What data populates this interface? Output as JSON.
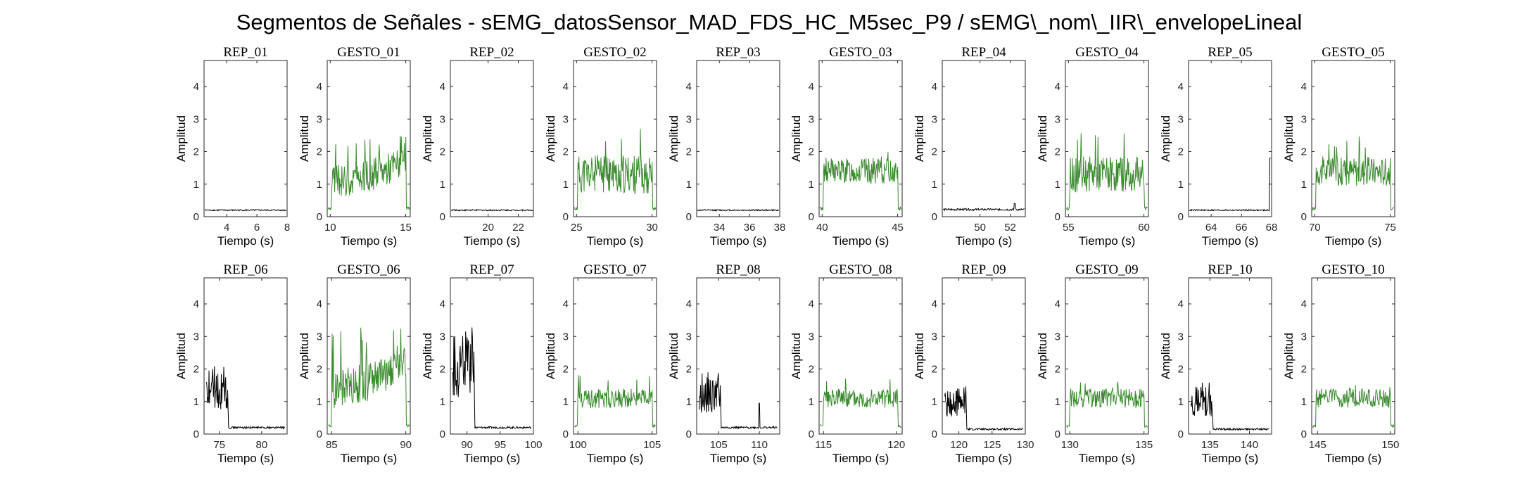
{
  "title": "Segmentos de Señales - sEMG_datosSensor_MAD_FDS_HC_M5sec_P9 / sEMG\\_nom\\_IIR\\_envelopeLineal",
  "colors": {
    "rep": "#000000",
    "gesto": "#3a8a2e"
  },
  "chart_data": [
    {
      "type": "line",
      "title": "REP_01",
      "xlabel": "Tiempo (s)",
      "ylabel": "Amplitud",
      "xlim": [
        2.5,
        8
      ],
      "ylim": [
        0,
        4.8
      ],
      "xticks": [
        4,
        6,
        8
      ],
      "yticks": [
        0,
        1,
        2,
        3,
        4
      ],
      "signal": {
        "kind": "rep",
        "pattern": "flat",
        "base": 0.2,
        "noise": 0.02
      }
    },
    {
      "type": "line",
      "title": "GESTO_01",
      "xlabel": "Tiempo (s)",
      "ylabel": "Amplitud",
      "xlim": [
        9.8,
        15.3
      ],
      "ylim": [
        0,
        4.8
      ],
      "xticks": [
        10,
        15
      ],
      "yticks": [
        0,
        1,
        2,
        3,
        4
      ],
      "signal": {
        "kind": "gesto",
        "pattern": "rising",
        "base": 1.1,
        "noise": 0.5,
        "peak": 2.5
      }
    },
    {
      "type": "line",
      "title": "REP_02",
      "xlabel": "Tiempo (s)",
      "ylabel": "Amplitud",
      "xlim": [
        17.5,
        23
      ],
      "ylim": [
        0,
        4.8
      ],
      "xticks": [
        20,
        22
      ],
      "yticks": [
        0,
        1,
        2,
        3,
        4
      ],
      "signal": {
        "kind": "rep",
        "pattern": "flat",
        "base": 0.2,
        "noise": 0.02
      }
    },
    {
      "type": "line",
      "title": "GESTO_02",
      "xlabel": "Tiempo (s)",
      "ylabel": "Amplitud",
      "xlim": [
        24.8,
        30.3
      ],
      "ylim": [
        0,
        4.8
      ],
      "xticks": [
        25,
        30
      ],
      "yticks": [
        0,
        1,
        2,
        3,
        4
      ],
      "signal": {
        "kind": "gesto",
        "pattern": "noisy",
        "base": 1.3,
        "noise": 0.6,
        "peak": 2.7
      }
    },
    {
      "type": "line",
      "title": "REP_03",
      "xlabel": "Tiempo (s)",
      "ylabel": "Amplitud",
      "xlim": [
        32.5,
        38
      ],
      "ylim": [
        0,
        4.8
      ],
      "xticks": [
        34,
        36,
        38
      ],
      "yticks": [
        0,
        1,
        2,
        3,
        4
      ],
      "signal": {
        "kind": "rep",
        "pattern": "flat",
        "base": 0.2,
        "noise": 0.02
      }
    },
    {
      "type": "line",
      "title": "GESTO_03",
      "xlabel": "Tiempo (s)",
      "ylabel": "Amplitud",
      "xlim": [
        39.8,
        45.3
      ],
      "ylim": [
        0,
        4.8
      ],
      "xticks": [
        40,
        45
      ],
      "yticks": [
        0,
        1,
        2,
        3,
        4
      ],
      "signal": {
        "kind": "gesto",
        "pattern": "noisy",
        "base": 1.4,
        "noise": 0.4,
        "peak": 2.1
      }
    },
    {
      "type": "line",
      "title": "REP_04",
      "xlabel": "Tiempo (s)",
      "ylabel": "Amplitud",
      "xlim": [
        47.5,
        53
      ],
      "ylim": [
        0,
        4.8
      ],
      "xticks": [
        50,
        52
      ],
      "yticks": [
        0,
        1,
        2,
        3,
        4
      ],
      "signal": {
        "kind": "rep",
        "pattern": "flat-spike",
        "base": 0.22,
        "noise": 0.03,
        "peak": 0.4
      }
    },
    {
      "type": "line",
      "title": "GESTO_04",
      "xlabel": "Tiempo (s)",
      "ylabel": "Amplitud",
      "xlim": [
        54.8,
        60.3
      ],
      "ylim": [
        0,
        4.8
      ],
      "xticks": [
        55,
        60
      ],
      "yticks": [
        0,
        1,
        2,
        3,
        4
      ],
      "signal": {
        "kind": "gesto",
        "pattern": "noisy",
        "base": 1.3,
        "noise": 0.55,
        "peak": 2.7
      }
    },
    {
      "type": "line",
      "title": "REP_05",
      "xlabel": "Tiempo (s)",
      "ylabel": "Amplitud",
      "xlim": [
        62.5,
        68
      ],
      "ylim": [
        0,
        4.8
      ],
      "xticks": [
        64,
        66,
        68
      ],
      "yticks": [
        0,
        1,
        2,
        3,
        4
      ],
      "signal": {
        "kind": "rep",
        "pattern": "flat-end",
        "base": 0.2,
        "noise": 0.02,
        "peak": 1.8
      }
    },
    {
      "type": "line",
      "title": "GESTO_05",
      "xlabel": "Tiempo (s)",
      "ylabel": "Amplitud",
      "xlim": [
        69.8,
        75.3
      ],
      "ylim": [
        0,
        4.8
      ],
      "xticks": [
        70,
        75
      ],
      "yticks": [
        0,
        1,
        2,
        3,
        4
      ],
      "signal": {
        "kind": "gesto",
        "pattern": "noisy",
        "base": 1.4,
        "noise": 0.45,
        "peak": 2.5
      }
    },
    {
      "type": "line",
      "title": "REP_06",
      "xlabel": "Tiempo (s)",
      "ylabel": "Amplitud",
      "xlim": [
        73.2,
        83
      ],
      "ylim": [
        0,
        4.8
      ],
      "xticks": [
        75,
        80
      ],
      "yticks": [
        0,
        1,
        2,
        3,
        4
      ],
      "signal": {
        "kind": "rep",
        "pattern": "burst-decay",
        "base": 0.2,
        "noise": 0.03,
        "peak": 2.1
      }
    },
    {
      "type": "line",
      "title": "GESTO_06",
      "xlabel": "Tiempo (s)",
      "ylabel": "Amplitud",
      "xlim": [
        84.7,
        90.3
      ],
      "ylim": [
        0,
        4.8
      ],
      "xticks": [
        85,
        90
      ],
      "yticks": [
        0,
        1,
        2,
        3,
        4
      ],
      "signal": {
        "kind": "gesto",
        "pattern": "rising",
        "base": 1.4,
        "noise": 0.6,
        "peak": 3.3
      }
    },
    {
      "type": "line",
      "title": "REP_07",
      "xlabel": "Tiempo (s)",
      "ylabel": "Amplitud",
      "xlim": [
        87.5,
        100
      ],
      "ylim": [
        0,
        4.8
      ],
      "xticks": [
        90,
        95,
        100
      ],
      "yticks": [
        0,
        1,
        2,
        3,
        4
      ],
      "signal": {
        "kind": "rep",
        "pattern": "burst-decay",
        "base": 0.2,
        "noise": 0.03,
        "peak": 3.3
      }
    },
    {
      "type": "line",
      "title": "GESTO_07",
      "xlabel": "Tiempo (s)",
      "ylabel": "Amplitud",
      "xlim": [
        99.7,
        105.3
      ],
      "ylim": [
        0,
        4.8
      ],
      "xticks": [
        100,
        105
      ],
      "yticks": [
        0,
        1,
        2,
        3,
        4
      ],
      "signal": {
        "kind": "gesto",
        "pattern": "noisy",
        "base": 1.1,
        "noise": 0.3,
        "peak": 1.9
      }
    },
    {
      "type": "line",
      "title": "REP_08",
      "xlabel": "Tiempo (s)",
      "ylabel": "Amplitud",
      "xlim": [
        102.3,
        112.5
      ],
      "ylim": [
        0,
        4.8
      ],
      "xticks": [
        105,
        110
      ],
      "yticks": [
        0,
        1,
        2,
        3,
        4
      ],
      "signal": {
        "kind": "rep",
        "pattern": "burst-decay-spike",
        "base": 0.2,
        "noise": 0.03,
        "peak": 1.9
      }
    },
    {
      "type": "line",
      "title": "GESTO_08",
      "xlabel": "Tiempo (s)",
      "ylabel": "Amplitud",
      "xlim": [
        114.7,
        120.4
      ],
      "ylim": [
        0,
        4.8
      ],
      "xticks": [
        115,
        120
      ],
      "yticks": [
        0,
        1,
        2,
        3,
        4
      ],
      "signal": {
        "kind": "gesto",
        "pattern": "noisy",
        "base": 1.1,
        "noise": 0.3,
        "peak": 1.8
      }
    },
    {
      "type": "line",
      "title": "REP_09",
      "xlabel": "Tiempo (s)",
      "ylabel": "Amplitud",
      "xlim": [
        117.5,
        130
      ],
      "ylim": [
        0,
        4.8
      ],
      "xticks": [
        120,
        125,
        130
      ],
      "yticks": [
        0,
        1,
        2,
        3,
        4
      ],
      "signal": {
        "kind": "rep",
        "pattern": "burst-decay",
        "base": 0.15,
        "noise": 0.03,
        "peak": 1.5
      }
    },
    {
      "type": "line",
      "title": "GESTO_09",
      "xlabel": "Tiempo (s)",
      "ylabel": "Amplitud",
      "xlim": [
        129.7,
        135.3
      ],
      "ylim": [
        0,
        4.8
      ],
      "xticks": [
        130,
        135
      ],
      "yticks": [
        0,
        1,
        2,
        3,
        4
      ],
      "signal": {
        "kind": "gesto",
        "pattern": "noisy",
        "base": 1.1,
        "noise": 0.3,
        "peak": 1.6
      }
    },
    {
      "type": "line",
      "title": "REP_10",
      "xlabel": "Tiempo (s)",
      "ylabel": "Amplitud",
      "xlim": [
        132.3,
        142.8
      ],
      "ylim": [
        0,
        4.8
      ],
      "xticks": [
        135,
        140
      ],
      "yticks": [
        0,
        1,
        2,
        3,
        4
      ],
      "signal": {
        "kind": "rep",
        "pattern": "burst-decay",
        "base": 0.15,
        "noise": 0.03,
        "peak": 1.6
      }
    },
    {
      "type": "line",
      "title": "GESTO_10",
      "xlabel": "Tiempo (s)",
      "ylabel": "Amplitud",
      "xlim": [
        144.6,
        150.3
      ],
      "ylim": [
        0,
        4.8
      ],
      "xticks": [
        145,
        150
      ],
      "yticks": [
        0,
        1,
        2,
        3,
        4
      ],
      "signal": {
        "kind": "gesto",
        "pattern": "noisy",
        "base": 1.1,
        "noise": 0.3,
        "peak": 1.5
      }
    }
  ]
}
